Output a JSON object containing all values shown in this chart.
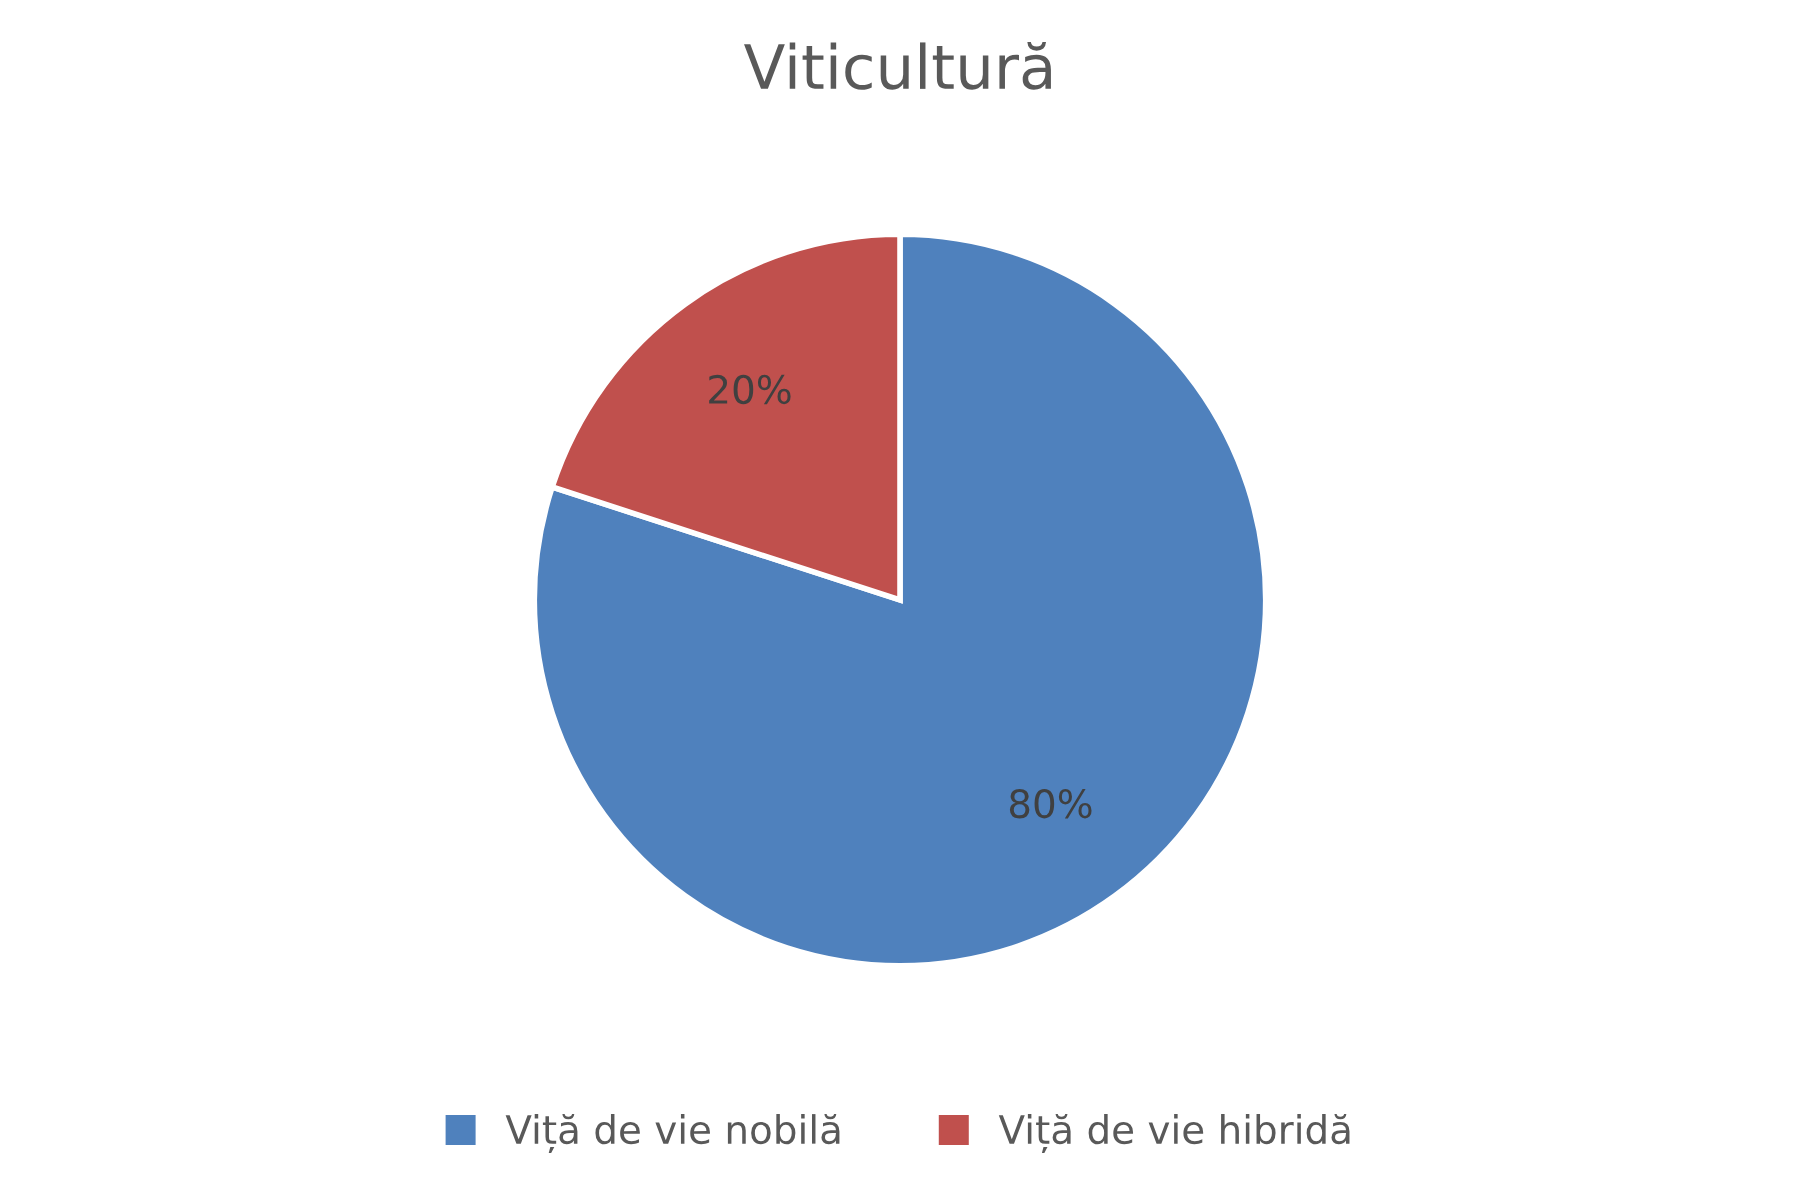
{
  "chart_data": {
    "type": "pie",
    "title": "Viticultură",
    "categories": [
      "Viță de vie nobilă",
      "Viță de vie hibridă"
    ],
    "values": [
      80,
      20
    ],
    "colors": [
      "#4f81bd",
      "#c0504d"
    ],
    "value_labels": [
      "80%",
      "20%"
    ],
    "legend": "bottom"
  }
}
